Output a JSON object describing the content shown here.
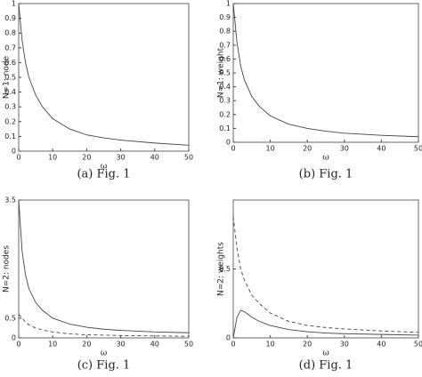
{
  "chart_data": [
    {
      "type": "line",
      "caption": "(a) Fig. 1",
      "xlabel": "ω",
      "ylabel": "N=1: node",
      "xlim": [
        0,
        50
      ],
      "xticks": [
        0,
        10,
        20,
        30,
        40,
        50
      ],
      "ylim": [
        0,
        1
      ],
      "yticks": [
        0,
        0.1,
        0.2,
        0.3,
        0.4,
        0.5,
        0.6,
        0.7,
        0.8,
        0.9,
        1
      ],
      "x": [
        0,
        1,
        2,
        3,
        5,
        7,
        10,
        15,
        20,
        25,
        30,
        40,
        50
      ],
      "series": [
        {
          "color": "#444",
          "linestyle": "solid",
          "values": [
            1,
            0.75,
            0.6,
            0.5,
            0.38,
            0.3,
            0.22,
            0.15,
            0.11,
            0.09,
            0.075,
            0.055,
            0.04
          ]
        }
      ]
    },
    {
      "type": "line",
      "caption": "(b) Fig. 1",
      "xlabel": "ω",
      "ylabel": "N=1: weight",
      "xlim": [
        0,
        50
      ],
      "xticks": [
        0,
        10,
        20,
        30,
        40,
        50
      ],
      "ylim": [
        0,
        1
      ],
      "yticks": [
        0,
        0.1,
        0.2,
        0.3,
        0.4,
        0.5,
        0.6,
        0.7,
        0.8,
        0.9,
        1
      ],
      "x": [
        0,
        1,
        2,
        3,
        5,
        7,
        10,
        15,
        20,
        25,
        30,
        40,
        50
      ],
      "series": [
        {
          "color": "#444",
          "linestyle": "solid",
          "values": [
            1,
            0.72,
            0.55,
            0.45,
            0.33,
            0.26,
            0.19,
            0.13,
            0.1,
            0.08,
            0.065,
            0.05,
            0.04
          ]
        }
      ]
    },
    {
      "type": "line",
      "caption": "(c) Fig. 1",
      "xlabel": "ω",
      "ylabel": "N=2: nodes",
      "xlim": [
        0,
        50
      ],
      "xticks": [
        0,
        10,
        20,
        30,
        40,
        50
      ],
      "ylim": [
        0,
        3.5
      ],
      "yticks": [
        0,
        0.5,
        3.5
      ],
      "x": [
        0,
        1,
        2,
        3,
        5,
        7,
        10,
        15,
        20,
        25,
        30,
        40,
        50
      ],
      "series": [
        {
          "color": "#444",
          "linestyle": "solid",
          "values": [
            3.5,
            2.2,
            1.6,
            1.25,
            0.9,
            0.7,
            0.5,
            0.35,
            0.27,
            0.22,
            0.19,
            0.15,
            0.13
          ]
        },
        {
          "color": "#444",
          "linestyle": "dashed",
          "values": [
            0.6,
            0.5,
            0.4,
            0.33,
            0.25,
            0.2,
            0.15,
            0.1,
            0.08,
            0.07,
            0.06,
            0.05,
            0.04
          ]
        }
      ]
    },
    {
      "type": "line",
      "caption": "(d) Fig. 1",
      "xlabel": "ω",
      "ylabel": "N=2: weights",
      "xlim": [
        0,
        50
      ],
      "xticks": [
        0,
        10,
        20,
        30,
        40,
        50
      ],
      "ylim": [
        0,
        1
      ],
      "yticks": [
        0,
        0.5
      ],
      "x": [
        0,
        1,
        2,
        3,
        5,
        7,
        10,
        15,
        20,
        25,
        30,
        40,
        50
      ],
      "series": [
        {
          "color": "#444",
          "linestyle": "dashed",
          "values": [
            0.88,
            0.65,
            0.5,
            0.42,
            0.31,
            0.25,
            0.18,
            0.12,
            0.09,
            0.075,
            0.065,
            0.05,
            0.04
          ]
        },
        {
          "color": "#444",
          "linestyle": "solid",
          "values": [
            0,
            0.15,
            0.2,
            0.19,
            0.15,
            0.12,
            0.09,
            0.06,
            0.045,
            0.035,
            0.03,
            0.025,
            0.02
          ]
        }
      ]
    }
  ]
}
